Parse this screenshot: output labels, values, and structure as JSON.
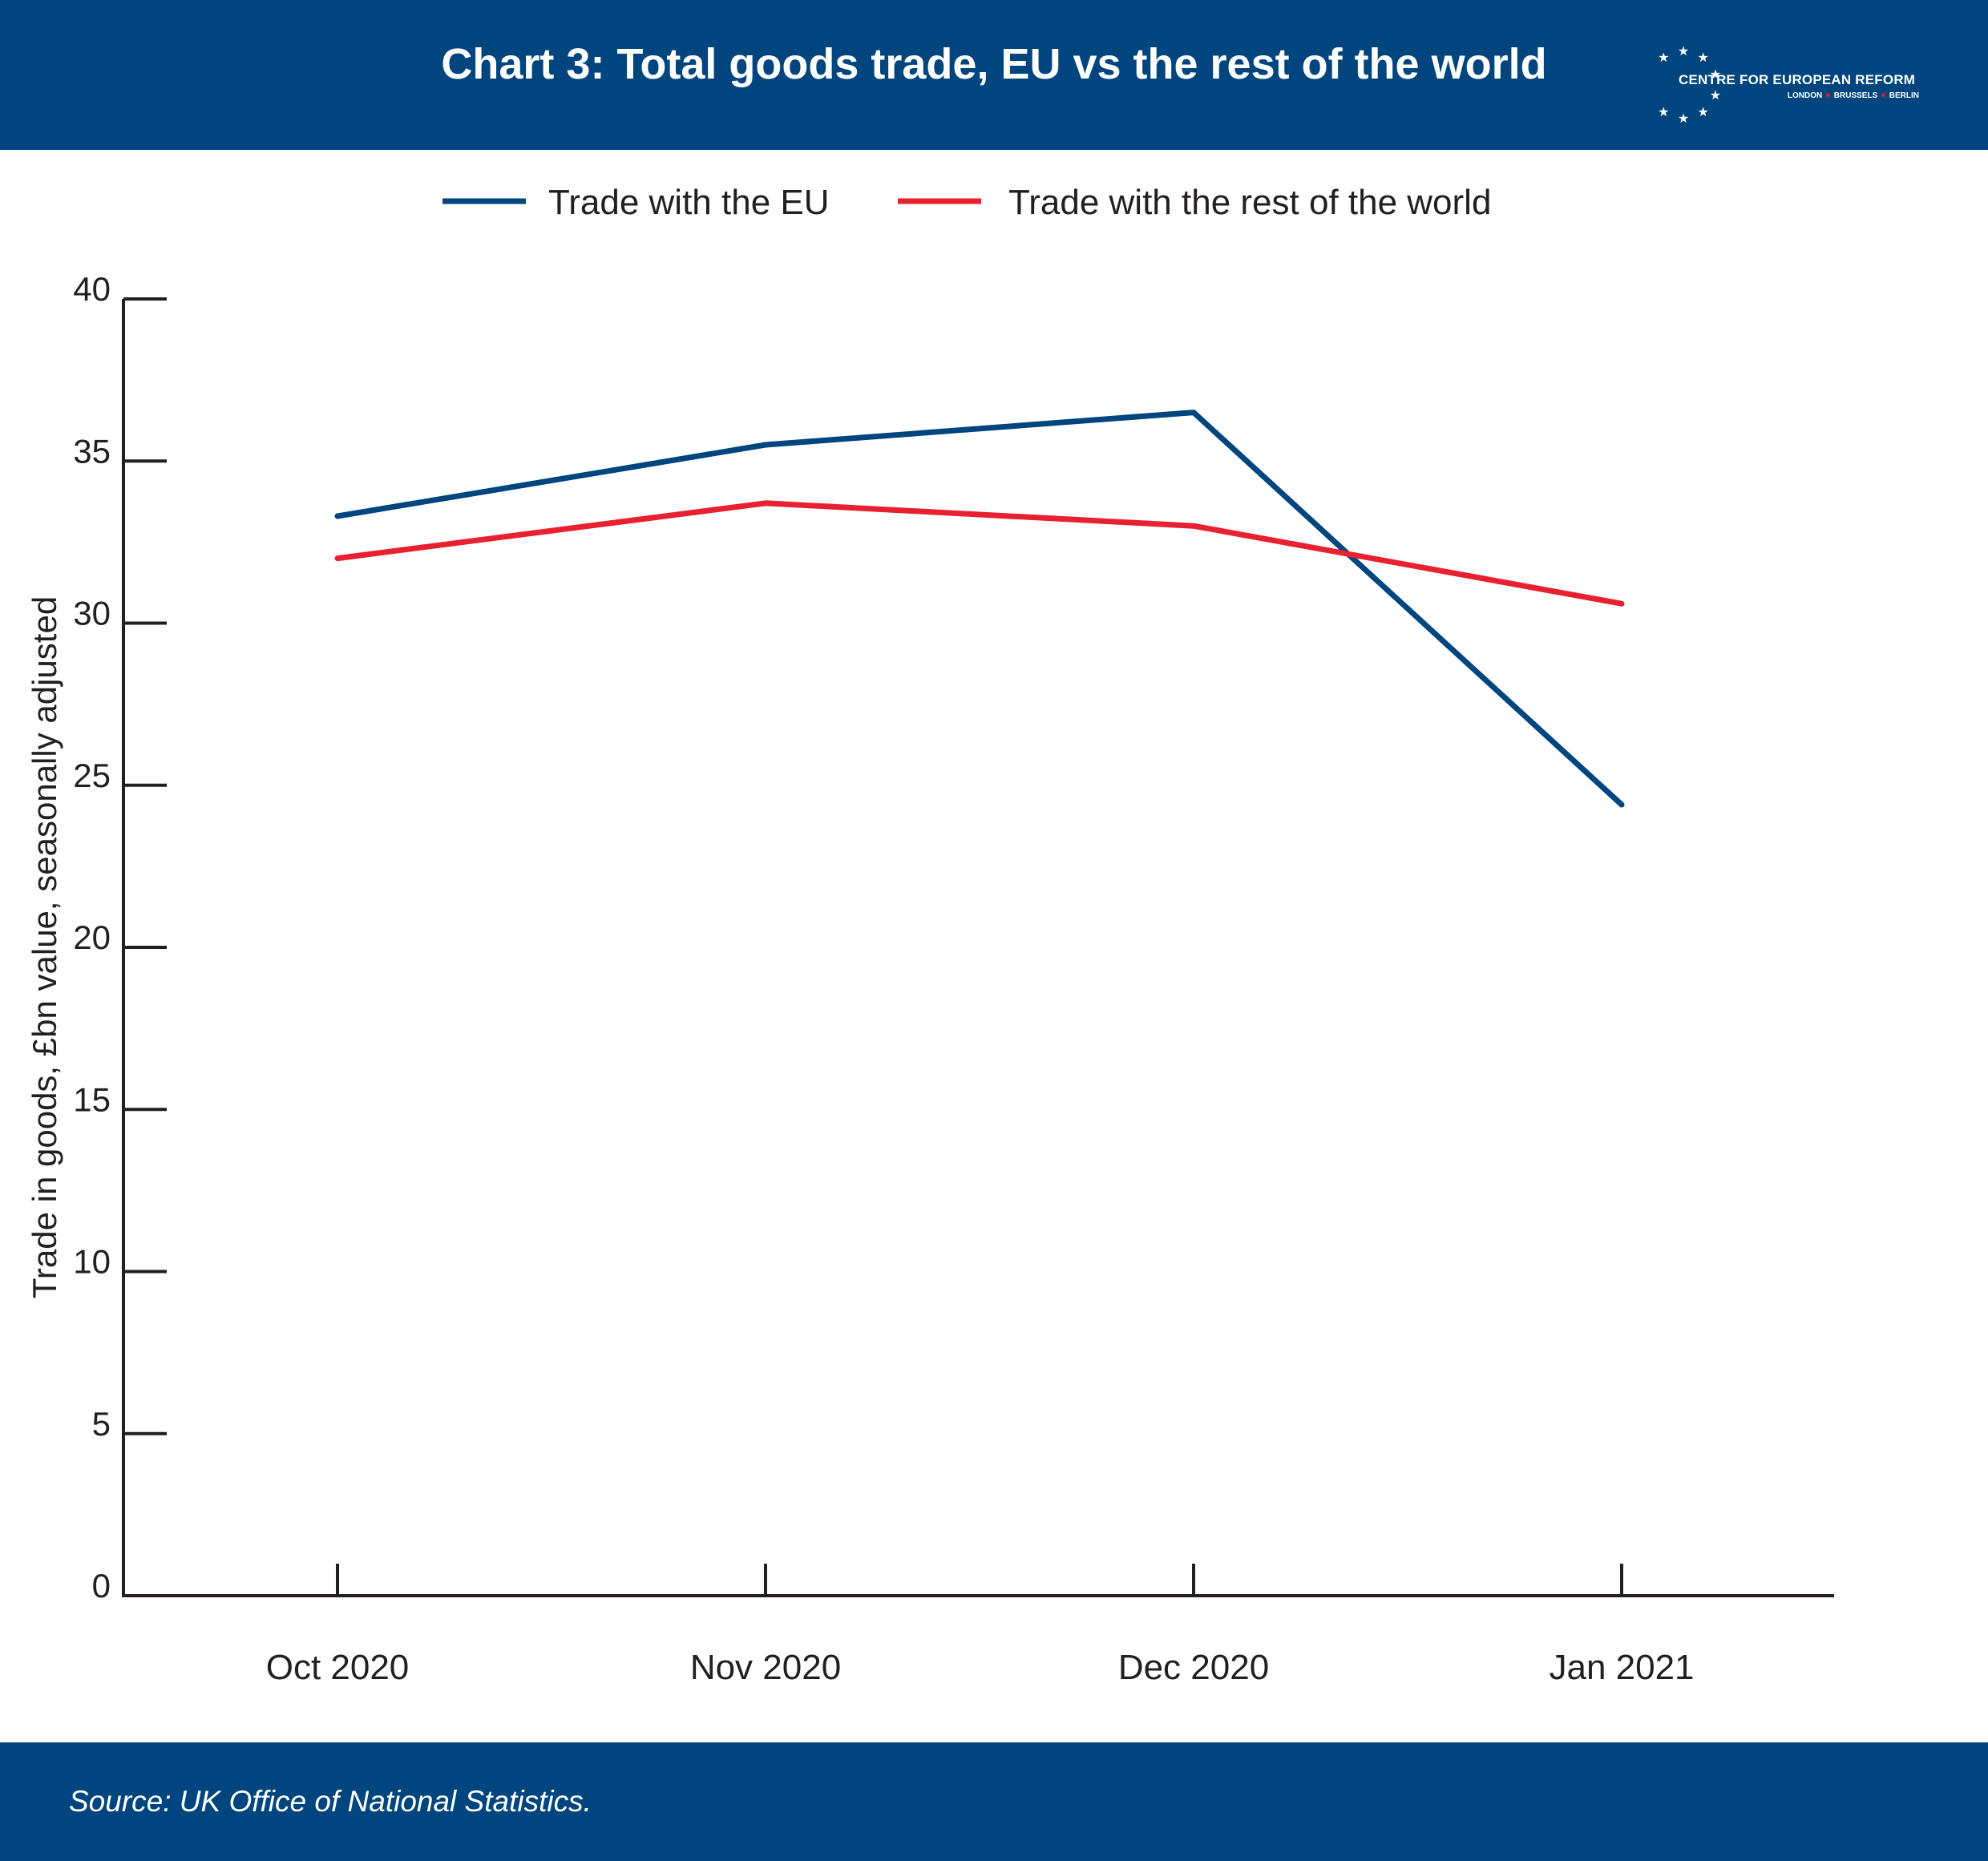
{
  "header": {
    "title": "Chart 3: Total goods trade, EU vs the rest of the world",
    "logo": {
      "name": "CENTRE FOR EUROPEAN REFORM",
      "cities": [
        "LONDON",
        "BRUSSELS",
        "BERLIN"
      ]
    }
  },
  "footer": {
    "source": "Source: UK Office of National Statistics."
  },
  "colors": {
    "header_bg": "#00457e",
    "eu_line": "#00457e",
    "rest_line": "#e8202f",
    "axis": "#231f20"
  },
  "chart_data": {
    "type": "line",
    "title": "Chart 3: Total goods trade, EU vs the rest of the world",
    "categories": [
      "Oct 2020",
      "Nov 2020",
      "Dec 2020",
      "Jan 2021"
    ],
    "series": [
      {
        "name": "Trade with the EU",
        "color": "#00457e",
        "values": [
          33.3,
          35.5,
          36.5,
          24.4
        ]
      },
      {
        "name": "Trade with the rest of the world",
        "color": "#e8202f",
        "values": [
          32.0,
          33.7,
          33.0,
          30.6
        ]
      }
    ],
    "ylabel": "Trade in goods, £bn value, seasonally adjusted",
    "xlabel": "",
    "ylim": [
      0,
      40
    ],
    "yticks": [
      0,
      5,
      10,
      15,
      20,
      25,
      30,
      35,
      40
    ],
    "grid": false,
    "legend_position": "top-center"
  }
}
